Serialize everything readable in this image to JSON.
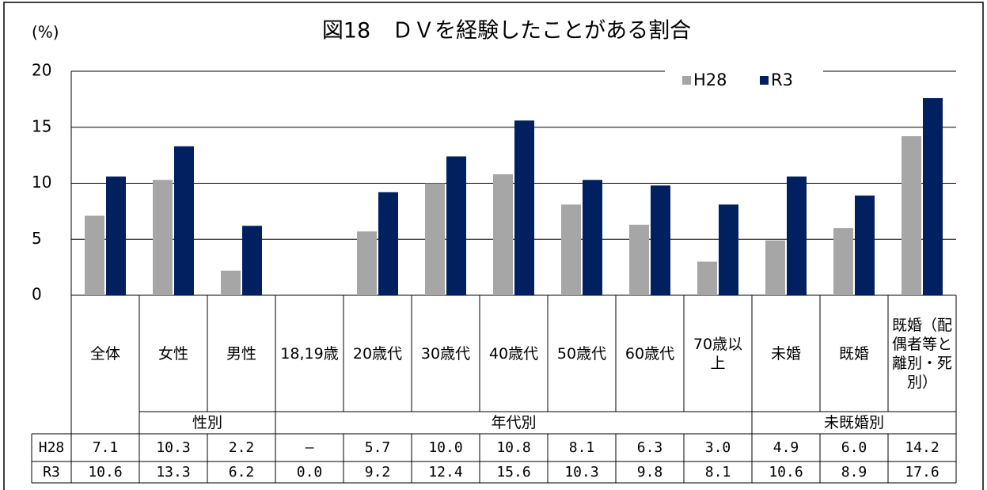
{
  "chart_data": {
    "type": "bar",
    "title": "図18　ＤＶを経験したことがある割合",
    "y_unit": "(%)",
    "categories": [
      "全体",
      "女性",
      "男性",
      "18,19歳",
      "20歳代",
      "30歳代",
      "40歳代",
      "50歳代",
      "60歳代",
      "70歳以上",
      "未婚",
      "既婚",
      "既婚（配偶者等と離別・死別）"
    ],
    "category_groups": [
      null,
      "性別",
      "性別",
      "年代別",
      "年代別",
      "年代別",
      "年代別",
      "年代別",
      "年代別",
      "年代別",
      "未既婚別",
      "未既婚別",
      "未既婚別"
    ],
    "series": [
      {
        "name": "H28",
        "color": "#a6a6a6",
        "values": [
          7.1,
          10.3,
          2.2,
          null,
          5.7,
          10.0,
          10.8,
          8.1,
          6.3,
          3.0,
          4.9,
          6.0,
          14.2
        ],
        "value_labels": [
          "7.1",
          "10.3",
          "2.2",
          "—",
          "5.7",
          "10.0",
          "10.8",
          "8.1",
          "6.3",
          "3.0",
          "4.9",
          "6.0",
          "14.2"
        ]
      },
      {
        "name": "R3",
        "color": "#002060",
        "values": [
          10.6,
          13.3,
          6.2,
          0.0,
          9.2,
          12.4,
          15.6,
          10.3,
          9.8,
          8.1,
          10.6,
          8.9,
          17.6
        ],
        "value_labels": [
          "10.6",
          "13.3",
          "6.2",
          "0.0",
          "9.2",
          "12.4",
          "15.6",
          "10.3",
          "9.8",
          "8.1",
          "10.6",
          "8.9",
          "17.6"
        ]
      }
    ],
    "ylim": [
      0,
      20
    ],
    "yticks": [
      0,
      5,
      10,
      15,
      20
    ],
    "grid": true,
    "legend": "top-right"
  }
}
